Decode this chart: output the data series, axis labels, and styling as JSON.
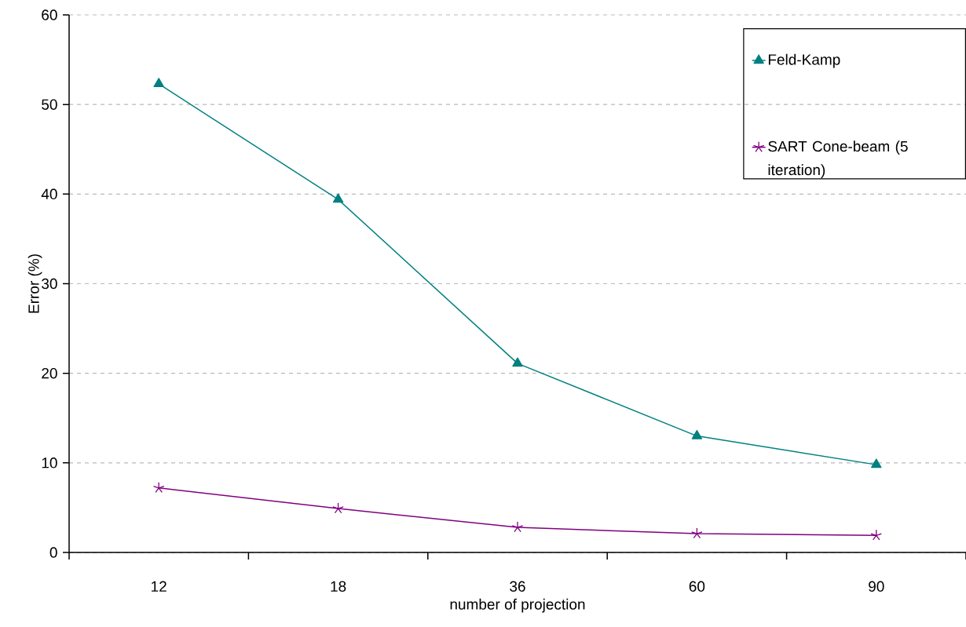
{
  "chart_data": {
    "type": "line",
    "xlabel": "number of projection",
    "ylabel": "Error (%)",
    "categories": [
      "12",
      "18",
      "36",
      "60",
      "90"
    ],
    "series": [
      {
        "name": "Feld-Kamp",
        "color": "#008080",
        "marker": "triangle",
        "values": [
          52.3,
          39.4,
          21.1,
          13.0,
          9.8
        ]
      },
      {
        "name": "SART Cone-beam (5 iteration)",
        "color": "#800080",
        "marker": "cross",
        "values": [
          7.2,
          4.9,
          2.8,
          2.1,
          1.9
        ]
      }
    ],
    "ylim": [
      0,
      60
    ],
    "yticks": [
      0,
      10,
      20,
      30,
      40,
      50,
      60
    ],
    "grid": "y",
    "legend": "top right",
    "line_style": "solid"
  }
}
